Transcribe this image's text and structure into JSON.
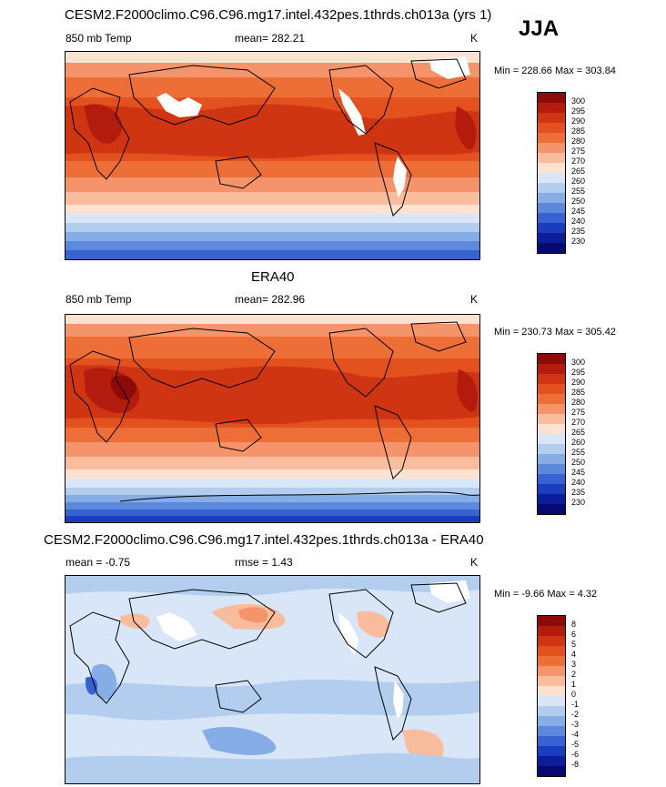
{
  "season": "JJA",
  "panels": [
    {
      "title": "CESM2.F2000climo.C96.C96.mg17.intel.432pes.1thrds.ch013a (yrs 1)",
      "left_label": "850 mb Temp",
      "center_label": "mean= 282.21",
      "units": "K",
      "minmax": "Min = 228.66 Max = 303.84"
    },
    {
      "title": "ERA40",
      "left_label": "850 mb Temp",
      "center_label": "mean= 282.96",
      "units": "K",
      "minmax": "Min = 230.73 Max = 305.42"
    },
    {
      "title": "CESM2.F2000climo.C96.C96.mg17.intel.432pes.1thrds.ch013a - ERA40",
      "left_label": "mean =  -0.75",
      "center_label": "rmse =   1.43",
      "units": "K",
      "minmax": "Min =  -9.66 Max =   4.32"
    }
  ],
  "temp_colorbar": {
    "labels": [
      "300",
      "295",
      "290",
      "285",
      "280",
      "275",
      "270",
      "265",
      "260",
      "255",
      "250",
      "245",
      "240",
      "235",
      "230"
    ],
    "colors": [
      "#8c0a0a",
      "#b31c0c",
      "#cf3512",
      "#e2511e",
      "#ee6e37",
      "#f5946a",
      "#f9bc9c",
      "#fde2d2",
      "#d8e6f7",
      "#b3cdef",
      "#86ade6",
      "#5c89dc",
      "#3862d1",
      "#1a3cbf",
      "#0b1d9a",
      "#050a70"
    ]
  },
  "diff_colorbar": {
    "labels": [
      "8",
      "6",
      "5",
      "4",
      "3",
      "2",
      "1",
      "0",
      "-1",
      "-2",
      "-3",
      "-4",
      "-5",
      "-6",
      "-8"
    ],
    "colors": [
      "#8c0a0a",
      "#b31c0c",
      "#cf3512",
      "#e2511e",
      "#ee6e37",
      "#f5946a",
      "#f9bc9c",
      "#fde2d2",
      "#d8e6f7",
      "#b3cdef",
      "#86ade6",
      "#5c89dc",
      "#3862d1",
      "#1a3cbf",
      "#0b1d9a",
      "#050a70"
    ]
  }
}
